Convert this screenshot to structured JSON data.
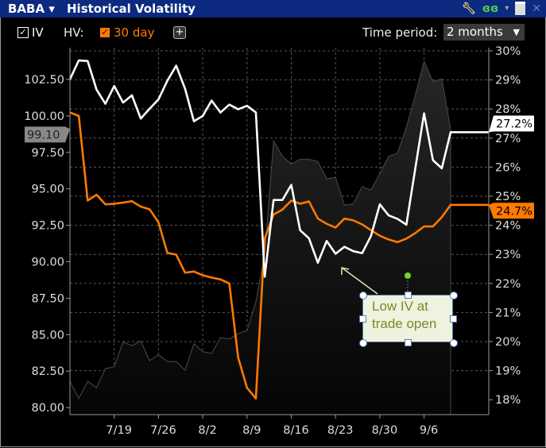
{
  "window": {
    "symbol": "BABA",
    "title": "Historical Volatility"
  },
  "title_icons": [
    "wrench-icon",
    "link-icon",
    "chevron-down-icon",
    "window-icon",
    "close-icon"
  ],
  "toolbar": {
    "iv_label": "IV",
    "iv_checked": true,
    "hv_label": "HV:",
    "hv_option": "30 day",
    "hv_checked": true,
    "add_label": "+",
    "time_period_label": "Time period:",
    "time_period_value": "2 months"
  },
  "colors": {
    "titlebar": "#0b2a80",
    "iv": "#ffffff",
    "hv": "#ff7a00",
    "price": "#555555",
    "annotation_fill": "#eef2de",
    "annotation_text": "#7a8a2a"
  },
  "annotation": {
    "line1": "Low IV at",
    "line2": "trade open"
  },
  "chart_data": {
    "type": "line",
    "x": [
      "7/12",
      "7/13",
      "7/14",
      "7/15",
      "7/16",
      "7/19",
      "7/20",
      "7/21",
      "7/22",
      "7/23",
      "7/26",
      "7/27",
      "7/28",
      "7/29",
      "7/30",
      "8/2",
      "8/3",
      "8/4",
      "8/5",
      "8/6",
      "8/9",
      "8/10",
      "8/11",
      "8/12",
      "8/13",
      "8/16",
      "8/17",
      "8/18",
      "8/19",
      "8/20",
      "8/23",
      "8/24",
      "8/25",
      "8/26",
      "8/27",
      "8/30",
      "8/31",
      "9/1",
      "9/2",
      "9/3",
      "9/6",
      "9/7",
      "9/8",
      "9/9"
    ],
    "x_ticks": [
      "7/19",
      "7/26",
      "8/2",
      "8/9",
      "8/16",
      "8/23",
      "8/30",
      "9/6"
    ],
    "left_axis": {
      "ticks": [
        "80.00",
        "82.50",
        "85.00",
        "87.50",
        "90.00",
        "92.50",
        "95.00",
        "97.50",
        "100.00",
        "102.50"
      ],
      "range": [
        80,
        102.5
      ]
    },
    "right_axis": {
      "ticks": [
        "18%",
        "19%",
        "20%",
        "21%",
        "22%",
        "23%",
        "24%",
        "25%",
        "26%",
        "27%",
        "28%",
        "29%",
        "30%"
      ],
      "range": [
        18,
        30
      ]
    },
    "grid": true,
    "series": [
      {
        "name": "IV",
        "axis": "right",
        "color": "#ffffff",
        "last_label": "27.2%",
        "values": [
          29.02,
          29.67,
          29.65,
          28.67,
          28.18,
          28.79,
          28.22,
          28.47,
          27.67,
          28.01,
          28.33,
          28.97,
          29.49,
          28.7,
          27.58,
          27.76,
          28.29,
          27.88,
          28.15,
          27.99,
          28.11,
          27.88,
          22.23,
          24.87,
          24.87,
          25.39,
          23.83,
          23.55,
          22.71,
          23.46,
          23.02,
          23.26,
          23.11,
          23.04,
          23.63,
          24.72,
          24.34,
          24.22,
          24.02,
          25.94,
          27.85,
          26.24,
          25.96,
          27.2
        ]
      },
      {
        "name": "30 day",
        "axis": "right",
        "color": "#ff7a00",
        "last_label": "24.7%",
        "values": [
          27.88,
          27.76,
          24.85,
          25.05,
          24.72,
          24.74,
          24.78,
          24.83,
          24.64,
          24.55,
          24.1,
          23.05,
          22.99,
          22.37,
          22.41,
          22.28,
          22.2,
          22.14,
          22.0,
          19.45,
          18.41,
          18.04,
          23.55,
          24.37,
          24.54,
          24.85,
          24.74,
          24.82,
          24.23,
          24.05,
          23.92,
          24.23,
          24.17,
          24.03,
          23.83,
          23.64,
          23.51,
          23.42,
          23.54,
          23.73,
          23.96,
          23.96,
          24.28,
          24.7
        ]
      },
      {
        "name": "BABA",
        "axis": "left",
        "color": "#555555",
        "type": "area",
        "last_label": "99.10",
        "values": [
          81.8,
          80.62,
          81.8,
          81.35,
          82.67,
          82.8,
          84.49,
          84.25,
          84.56,
          83.22,
          83.62,
          83.16,
          83.16,
          82.56,
          84.38,
          83.83,
          83.71,
          84.8,
          84.7,
          85.07,
          85.29,
          87.25,
          90.52,
          98.29,
          97.23,
          96.69,
          97.02,
          97.02,
          96.87,
          95.69,
          95.78,
          93.88,
          93.97,
          95.15,
          94.91,
          96.06,
          97.23,
          97.45,
          99.23,
          101.41,
          103.74,
          102.35,
          102.54,
          99.1
        ]
      }
    ]
  }
}
